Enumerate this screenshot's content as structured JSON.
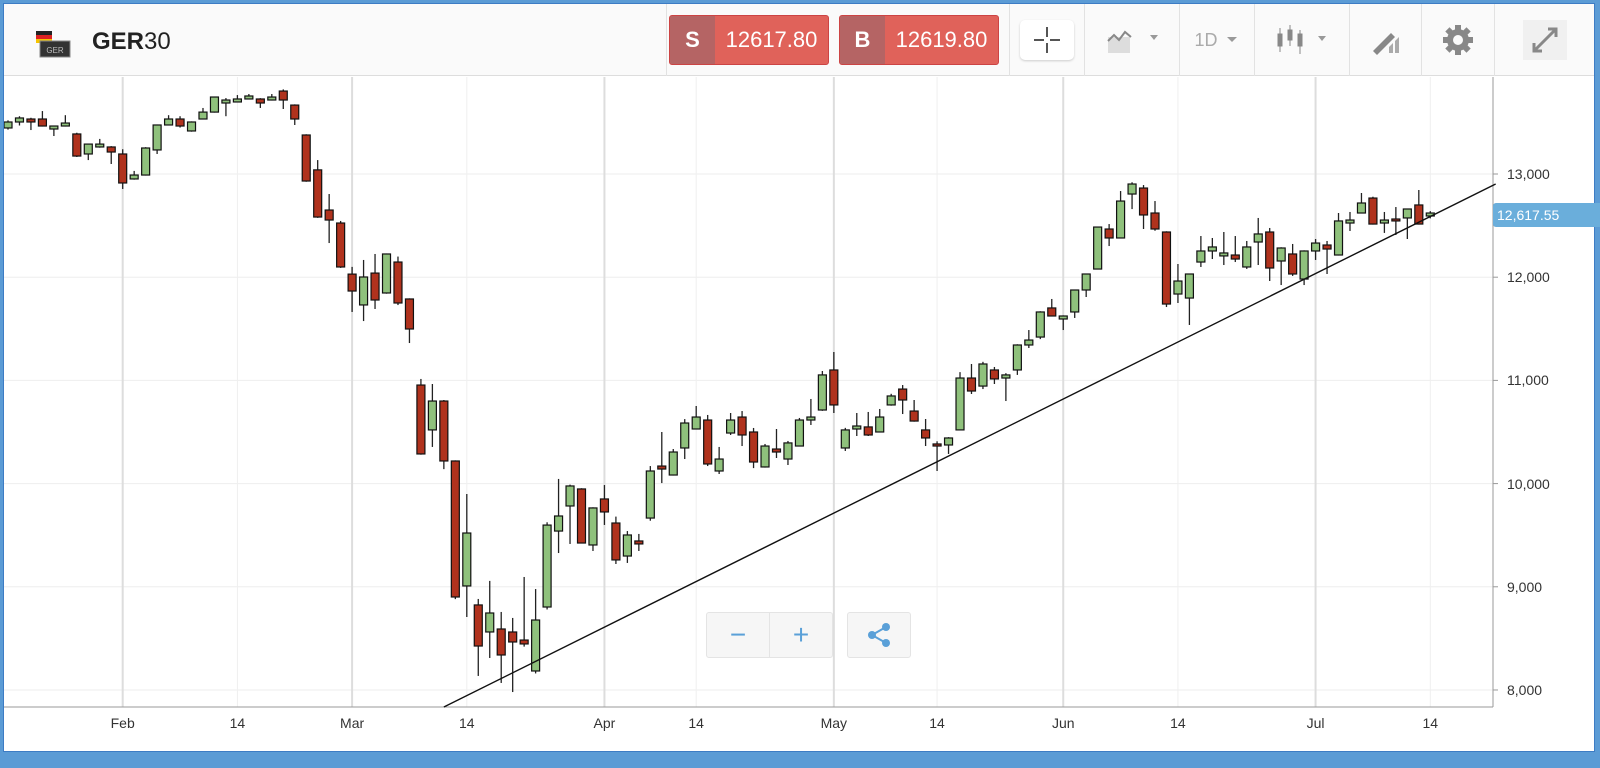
{
  "header": {
    "symbol_bold": "GER",
    "symbol_rest": "30",
    "flag_badge": "GER",
    "sell": {
      "key": "S",
      "price": "12617.80"
    },
    "buy": {
      "key": "B",
      "price": "12619.80"
    },
    "timeframe": "1D",
    "icons": [
      "crosshair-icon",
      "chart-type-icon",
      "timeframe-dropdown",
      "candlestick-icon",
      "drawing-tool-icon",
      "gear-icon",
      "fullscreen-icon"
    ]
  },
  "controls": {
    "zoom_out": "−",
    "zoom_in": "+",
    "share_icon": "share-icon"
  },
  "colors": {
    "up": "#8fc17c",
    "down": "#b0321d",
    "accent": "#6aaedb",
    "sell": "#e0625a"
  },
  "chart_data": {
    "type": "candlestick",
    "title": "GER30",
    "current_price_label": "12,617.55",
    "ylim": [
      7835,
      13940
    ],
    "yticks": [
      {
        "v": 13000,
        "label": "13,000"
      },
      {
        "v": 12000,
        "label": "12,000"
      },
      {
        "v": 11000,
        "label": "11,000"
      },
      {
        "v": 10000,
        "label": "10,000"
      },
      {
        "v": 9000,
        "label": "9,000"
      },
      {
        "v": 8000,
        "label": "8,000"
      }
    ],
    "xticks": [
      {
        "i": 10,
        "label": "Feb"
      },
      {
        "i": 20,
        "label": "14"
      },
      {
        "i": 30,
        "label": "Mar"
      },
      {
        "i": 40,
        "label": "14"
      },
      {
        "i": 52,
        "label": "Apr"
      },
      {
        "i": 60,
        "label": "14"
      },
      {
        "i": 72,
        "label": "May"
      },
      {
        "i": 81,
        "label": "14"
      },
      {
        "i": 92,
        "label": "Jun"
      },
      {
        "i": 102,
        "label": "14"
      },
      {
        "i": 114,
        "label": "Jul"
      },
      {
        "i": 124,
        "label": "14"
      }
    ],
    "trendline": {
      "from": [
        38,
        7835
      ],
      "to": [
        129.7,
        12903
      ]
    },
    "ohlc": [
      [
        13446,
        13520,
        13430,
        13504
      ],
      [
        13504,
        13560,
        13470,
        13543
      ],
      [
        13533,
        13545,
        13426,
        13504
      ],
      [
        13533,
        13610,
        13460,
        13465
      ],
      [
        13436,
        13470,
        13368,
        13465
      ],
      [
        13465,
        13570,
        13460,
        13494
      ],
      [
        13388,
        13400,
        13165,
        13174
      ],
      [
        13194,
        13295,
        13135,
        13290
      ],
      [
        13262,
        13340,
        13255,
        13290
      ],
      [
        13262,
        13270,
        13097,
        13213
      ],
      [
        13194,
        13240,
        12855,
        12913
      ],
      [
        12952,
        13030,
        12945,
        12990
      ],
      [
        12990,
        13260,
        12985,
        13252
      ],
      [
        13233,
        13480,
        13194,
        13475
      ],
      [
        13475,
        13570,
        13470,
        13533
      ],
      [
        13533,
        13560,
        13450,
        13465
      ],
      [
        13417,
        13510,
        13410,
        13504
      ],
      [
        13533,
        13640,
        13530,
        13600
      ],
      [
        13600,
        13750,
        13595,
        13746
      ],
      [
        13688,
        13736,
        13560,
        13717
      ],
      [
        13698,
        13765,
        13695,
        13727
      ],
      [
        13727,
        13775,
        13722,
        13756
      ],
      [
        13727,
        13735,
        13640,
        13688
      ],
      [
        13717,
        13775,
        13712,
        13746
      ],
      [
        13804,
        13820,
        13630,
        13717
      ],
      [
        13668,
        13675,
        13475,
        13533
      ],
      [
        13378,
        13385,
        12925,
        12932
      ],
      [
        13040,
        13135,
        12575,
        12583
      ],
      [
        12651,
        12806,
        12331,
        12554
      ],
      [
        12525,
        12545,
        12090,
        12099
      ],
      [
        12030,
        12100,
        11663,
        11866
      ],
      [
        11731,
        12167,
        11575,
        12002
      ],
      [
        12040,
        12225,
        11692,
        11779
      ],
      [
        11847,
        12230,
        11840,
        12225
      ],
      [
        12147,
        12200,
        11730,
        11750
      ],
      [
        11789,
        11795,
        11362,
        11498
      ],
      [
        10955,
        11014,
        10280,
        10287
      ],
      [
        10520,
        10965,
        10355,
        10800
      ],
      [
        10800,
        10810,
        10140,
        10219
      ],
      [
        10219,
        10225,
        8880,
        8901
      ],
      [
        9008,
        9899,
        8707,
        9521
      ],
      [
        8824,
        8882,
        8136,
        8426
      ],
      [
        8562,
        9057,
        8310,
        8746
      ],
      [
        8591,
        8756,
        8068,
        8339
      ],
      [
        8562,
        8698,
        7980,
        8465
      ],
      [
        8484,
        9095,
        8420,
        8446
      ],
      [
        8184,
        8978,
        8160,
        8678
      ],
      [
        8804,
        9625,
        8780,
        9598
      ],
      [
        9540,
        10045,
        9327,
        9686
      ],
      [
        9783,
        9990,
        9415,
        9977
      ],
      [
        9948,
        9955,
        9420,
        9424
      ],
      [
        9405,
        9770,
        9347,
        9764
      ],
      [
        9851,
        9986,
        9599,
        9725
      ],
      [
        9618,
        9680,
        9221,
        9260
      ],
      [
        9298,
        9540,
        9231,
        9502
      ],
      [
        9444,
        9512,
        9347,
        9415
      ],
      [
        9666,
        10170,
        9640,
        10122
      ],
      [
        10170,
        10500,
        10005,
        10141
      ],
      [
        10083,
        10335,
        10078,
        10306
      ],
      [
        10345,
        10625,
        10238,
        10587
      ],
      [
        10529,
        10752,
        10525,
        10645
      ],
      [
        10616,
        10665,
        10170,
        10190
      ],
      [
        10122,
        10355,
        10093,
        10238
      ],
      [
        10490,
        10684,
        10471,
        10616
      ],
      [
        10645,
        10703,
        10364,
        10471
      ],
      [
        10500,
        10539,
        10150,
        10209
      ],
      [
        10161,
        10384,
        10155,
        10364
      ],
      [
        10335,
        10529,
        10248,
        10306
      ],
      [
        10238,
        10413,
        10180,
        10394
      ],
      [
        10364,
        10636,
        10360,
        10616
      ],
      [
        10616,
        10820,
        10568,
        10645
      ],
      [
        10713,
        11091,
        10705,
        11053
      ],
      [
        11101,
        11275,
        10684,
        10762
      ],
      [
        10345,
        10540,
        10316,
        10520
      ],
      [
        10529,
        10684,
        10461,
        10558
      ],
      [
        10549,
        10694,
        10461,
        10471
      ],
      [
        10500,
        10723,
        10495,
        10645
      ],
      [
        10762,
        10870,
        10755,
        10849
      ],
      [
        10916,
        10955,
        10674,
        10810
      ],
      [
        10703,
        10810,
        10600,
        10606
      ],
      [
        10520,
        10626,
        10364,
        10442
      ],
      [
        10384,
        10410,
        10122,
        10364
      ],
      [
        10374,
        10450,
        10287,
        10442
      ],
      [
        10520,
        11080,
        10515,
        11023
      ],
      [
        11023,
        11159,
        10868,
        10897
      ],
      [
        10945,
        11180,
        10916,
        11159
      ],
      [
        11101,
        11130,
        10965,
        11014
      ],
      [
        11023,
        11070,
        10800,
        11053
      ],
      [
        11101,
        11350,
        11053,
        11343
      ],
      [
        11343,
        11488,
        11314,
        11391
      ],
      [
        11420,
        11670,
        11400,
        11663
      ],
      [
        11702,
        11789,
        11620,
        11624
      ],
      [
        11595,
        11630,
        11488,
        11624
      ],
      [
        11663,
        11880,
        11605,
        11876
      ],
      [
        11876,
        12035,
        11808,
        12031
      ],
      [
        12079,
        12490,
        12075,
        12486
      ],
      [
        12467,
        12515,
        12302,
        12380
      ],
      [
        12380,
        12835,
        12375,
        12738
      ],
      [
        12806,
        12920,
        12660,
        12903
      ],
      [
        12864,
        12893,
        12467,
        12603
      ],
      [
        12622,
        12738,
        12450,
        12467
      ],
      [
        12438,
        12445,
        11711,
        11740
      ],
      [
        11837,
        12128,
        11750,
        11963
      ],
      [
        11798,
        12035,
        11537,
        12031
      ],
      [
        12147,
        12399,
        12099,
        12254
      ],
      [
        12254,
        12380,
        12176,
        12293
      ],
      [
        12206,
        12438,
        12118,
        12235
      ],
      [
        12215,
        12399,
        12147,
        12176
      ],
      [
        12099,
        12351,
        12080,
        12293
      ],
      [
        12341,
        12574,
        12118,
        12419
      ],
      [
        12438,
        12477,
        11963,
        12089
      ],
      [
        12157,
        12290,
        11924,
        12283
      ],
      [
        12225,
        12322,
        12012,
        12031
      ],
      [
        11982,
        12260,
        11924,
        12254
      ],
      [
        12254,
        12370,
        12167,
        12331
      ],
      [
        12312,
        12351,
        12031,
        12273
      ],
      [
        12215,
        12622,
        12210,
        12545
      ],
      [
        12525,
        12632,
        12448,
        12554
      ],
      [
        12622,
        12816,
        12618,
        12719
      ],
      [
        12767,
        12780,
        12510,
        12515
      ],
      [
        12525,
        12632,
        12429,
        12554
      ],
      [
        12564,
        12680,
        12409,
        12545
      ],
      [
        12574,
        12665,
        12370,
        12661
      ],
      [
        12700,
        12845,
        12510,
        12515
      ],
      [
        12593,
        12640,
        12570,
        12622
      ]
    ]
  }
}
